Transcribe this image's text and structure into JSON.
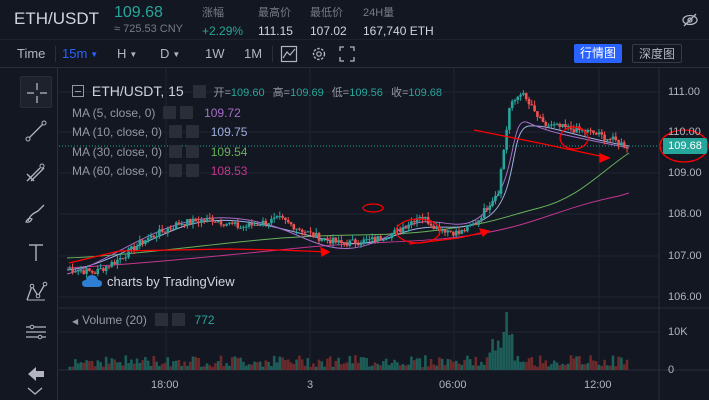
{
  "header": {
    "pair": "ETH/USDT",
    "price": "109.68",
    "cny": "≈ 725.53 CNY",
    "stats": [
      {
        "label": "涨幅",
        "value": "+2.29%"
      },
      {
        "label": "最高价",
        "value": "111.15"
      },
      {
        "label": "最低价",
        "value": "107.02"
      },
      {
        "label": "24H量",
        "value": "167,740 ETH"
      }
    ]
  },
  "toolbar": {
    "time_label": "Time",
    "interval": "15m",
    "h_label": "H",
    "d_label": "D",
    "w1": "1W",
    "m1": "1M",
    "view_on": "行情图",
    "view_off": "深度图"
  },
  "chart": {
    "title": "ETH/USDT, 15",
    "ohlc": {
      "o_label": "开=",
      "o": "109.60",
      "h_label": "高=",
      "h": "109.69",
      "l_label": "低=",
      "l": "109.56",
      "c_label": "收=",
      "c": "109.68"
    },
    "ma": [
      {
        "label": "MA (5, close, 0)",
        "value": "109.72",
        "color": "#a86dc9"
      },
      {
        "label": "MA (10, close, 0)",
        "value": "109.75",
        "color": "#9fb0e0"
      },
      {
        "label": "MA (30, close, 0)",
        "value": "109.54",
        "color": "#67b25a"
      },
      {
        "label": "MA (60, close, 0)",
        "value": "108.53",
        "color": "#c2378f"
      }
    ],
    "watermark": "charts by TradingView",
    "volume_label": "Volume (20)",
    "volume_value": "772",
    "last_price": "109.68",
    "y_ticks": [
      "111.00",
      "110.00",
      "109.00",
      "108.00",
      "107.00",
      "106.00"
    ],
    "vol_ticks": [
      "10K",
      "0"
    ],
    "x_ticks": [
      "18:00",
      "3",
      "06:00",
      "12:00"
    ]
  },
  "colors": {
    "up": "#26a69a",
    "down": "#ef5350",
    "annotation": "#ff0000",
    "bg": "#131722"
  }
}
